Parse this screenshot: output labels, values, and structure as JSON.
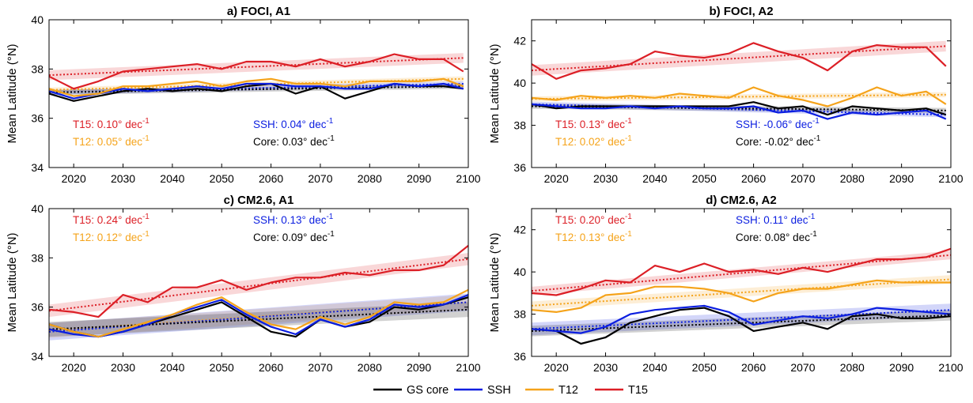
{
  "figure": {
    "legend": [
      {
        "name": "GS core",
        "color": "#000000"
      },
      {
        "name": "SSH",
        "color": "#0b1ee0"
      },
      {
        "name": "T12",
        "color": "#f5a31a"
      },
      {
        "name": "T15",
        "color": "#dc1f26"
      }
    ]
  },
  "chart_data": [
    {
      "type": "line",
      "title": "a) FOCI, A1",
      "xlabel": "",
      "ylabel": "Mean Latitude (°N)",
      "xlim": [
        2015,
        2100
      ],
      "ylim": [
        34,
        40
      ],
      "xticks": [
        2020,
        2030,
        2040,
        2050,
        2060,
        2070,
        2080,
        2090,
        2100
      ],
      "yticks": [
        34,
        36,
        38,
        40
      ],
      "grid": false,
      "annotations": [
        {
          "prefix": "T15:",
          "value": "0.10°",
          "unit": "dec",
          "exp": "-1",
          "color": "#dc1f26"
        },
        {
          "prefix": "T12:",
          "value": "0.05°",
          "unit": "dec",
          "exp": "-1",
          "color": "#f5a31a"
        },
        {
          "prefix": "SSH:",
          "value": "0.04°",
          "unit": "dec",
          "exp": "-1",
          "color": "#0b1ee0"
        },
        {
          "prefix": "Core:",
          "value": "0.03°",
          "unit": "dec",
          "exp": "-1",
          "color": "#000000"
        }
      ],
      "x": [
        2015,
        2020,
        2025,
        2030,
        2035,
        2040,
        2045,
        2050,
        2055,
        2060,
        2065,
        2070,
        2075,
        2080,
        2085,
        2090,
        2095,
        2099
      ],
      "series": [
        {
          "name": "T15",
          "color": "#dc1f26",
          "values": [
            37.7,
            37.2,
            37.5,
            37.9,
            38.0,
            38.1,
            38.2,
            38.0,
            38.3,
            38.3,
            38.1,
            38.4,
            38.1,
            38.3,
            38.6,
            38.4,
            38.4,
            37.9
          ],
          "trend": [
            37.75,
            38.45
          ],
          "band": 0.2
        },
        {
          "name": "T12",
          "color": "#f5a31a",
          "values": [
            37.2,
            36.9,
            37.0,
            37.3,
            37.3,
            37.4,
            37.5,
            37.3,
            37.5,
            37.6,
            37.4,
            37.4,
            37.3,
            37.5,
            37.5,
            37.5,
            37.6,
            37.3
          ],
          "trend": [
            37.15,
            37.6
          ],
          "band": 0.1
        },
        {
          "name": "SSH",
          "color": "#0b1ee0",
          "values": [
            37.1,
            36.8,
            37.0,
            37.2,
            37.1,
            37.2,
            37.3,
            37.2,
            37.4,
            37.4,
            37.3,
            37.3,
            37.2,
            37.2,
            37.4,
            37.3,
            37.4,
            37.2
          ],
          "trend": [
            37.05,
            37.4
          ],
          "band": 0.1
        },
        {
          "name": "GS core",
          "color": "#000000",
          "values": [
            37.0,
            36.7,
            36.9,
            37.1,
            37.2,
            37.1,
            37.2,
            37.1,
            37.3,
            37.4,
            37.0,
            37.3,
            36.8,
            37.1,
            37.4,
            37.3,
            37.3,
            37.2
          ],
          "trend": [
            37.05,
            37.3
          ],
          "band": 0.1
        }
      ]
    },
    {
      "type": "line",
      "title": "b) FOCI, A2",
      "xlabel": "",
      "ylabel": "Mean Latitude (°N)",
      "xlim": [
        2015,
        2100
      ],
      "ylim": [
        36,
        43
      ],
      "xticks": [
        2020,
        2030,
        2040,
        2050,
        2060,
        2070,
        2080,
        2090,
        2100
      ],
      "yticks": [
        36,
        38,
        40,
        42
      ],
      "grid": false,
      "annotations": [
        {
          "prefix": "T15:",
          "value": "0.13°",
          "unit": "dec",
          "exp": "-1",
          "color": "#dc1f26"
        },
        {
          "prefix": "T12:",
          "value": "0.02°",
          "unit": "dec",
          "exp": "-1",
          "color": "#f5a31a"
        },
        {
          "prefix": "SSH:",
          "value": "-0.06°",
          "unit": "dec",
          "exp": "-1",
          "color": "#0b1ee0"
        },
        {
          "prefix": "Core:",
          "value": "-0.02°",
          "unit": "dec",
          "exp": "-1",
          "color": "#000000"
        }
      ],
      "x": [
        2015,
        2020,
        2025,
        2030,
        2035,
        2040,
        2045,
        2050,
        2055,
        2060,
        2065,
        2070,
        2075,
        2080,
        2085,
        2090,
        2095,
        2099
      ],
      "series": [
        {
          "name": "T15",
          "color": "#dc1f26",
          "values": [
            40.9,
            40.2,
            40.6,
            40.7,
            40.9,
            41.5,
            41.3,
            41.2,
            41.4,
            41.9,
            41.5,
            41.2,
            40.6,
            41.5,
            41.8,
            41.7,
            41.7,
            40.8
          ],
          "trend": [
            40.6,
            41.75
          ],
          "band": 0.25
        },
        {
          "name": "T12",
          "color": "#f5a31a",
          "values": [
            39.3,
            39.2,
            39.4,
            39.3,
            39.4,
            39.3,
            39.5,
            39.4,
            39.3,
            39.8,
            39.4,
            39.2,
            38.9,
            39.3,
            39.8,
            39.4,
            39.6,
            39.0
          ],
          "trend": [
            39.25,
            39.45
          ],
          "band": 0.12
        },
        {
          "name": "SSH",
          "color": "#0b1ee0",
          "values": [
            39.0,
            38.9,
            38.8,
            38.8,
            38.9,
            38.8,
            38.9,
            38.8,
            38.8,
            38.9,
            38.6,
            38.7,
            38.3,
            38.6,
            38.5,
            38.6,
            38.7,
            38.3
          ],
          "trend": [
            39.0,
            38.5
          ],
          "band": 0.12
        },
        {
          "name": "GS core",
          "color": "#000000",
          "values": [
            39.0,
            38.8,
            38.9,
            38.9,
            38.9,
            38.9,
            38.9,
            38.9,
            38.9,
            39.1,
            38.8,
            38.9,
            38.5,
            38.9,
            38.8,
            38.7,
            38.8,
            38.5
          ],
          "trend": [
            38.9,
            38.7
          ],
          "band": 0.12
        }
      ]
    },
    {
      "type": "line",
      "title": "c) CM2.6, A1",
      "xlabel": "",
      "ylabel": "Mean Latitude (°N)",
      "xlim": [
        2015,
        2100
      ],
      "ylim": [
        34,
        40
      ],
      "xticks": [
        2020,
        2030,
        2040,
        2050,
        2060,
        2070,
        2080,
        2090,
        2100
      ],
      "yticks": [
        34,
        36,
        38,
        40
      ],
      "grid": false,
      "annotations": [
        {
          "prefix": "T15:",
          "value": "0.24°",
          "unit": "dec",
          "exp": "-1",
          "color": "#dc1f26"
        },
        {
          "prefix": "T12:",
          "value": "0.12°",
          "unit": "dec",
          "exp": "-1",
          "color": "#f5a31a"
        },
        {
          "prefix": "SSH:",
          "value": "0.13°",
          "unit": "dec",
          "exp": "-1",
          "color": "#0b1ee0"
        },
        {
          "prefix": "Core:",
          "value": "0.09°",
          "unit": "dec",
          "exp": "-1",
          "color": "#000000"
        }
      ],
      "x": [
        2015,
        2020,
        2025,
        2030,
        2035,
        2040,
        2045,
        2050,
        2055,
        2060,
        2065,
        2070,
        2075,
        2080,
        2085,
        2090,
        2095,
        2100
      ],
      "series": [
        {
          "name": "T15",
          "color": "#dc1f26",
          "values": [
            35.9,
            35.8,
            35.6,
            36.5,
            36.2,
            36.8,
            36.8,
            37.1,
            36.7,
            37.0,
            37.2,
            37.2,
            37.4,
            37.3,
            37.5,
            37.5,
            37.7,
            38.5
          ],
          "trend": [
            35.85,
            37.95
          ],
          "band": 0.25
        },
        {
          "name": "T12",
          "color": "#f5a31a",
          "values": [
            35.3,
            35.0,
            34.8,
            35.1,
            35.4,
            35.7,
            36.1,
            36.4,
            35.8,
            35.3,
            35.1,
            35.6,
            35.3,
            35.6,
            36.2,
            36.1,
            36.2,
            36.7
          ],
          "trend": [
            35.05,
            36.2
          ],
          "band": 0.3
        },
        {
          "name": "SSH",
          "color": "#0b1ee0",
          "values": [
            35.1,
            34.9,
            34.8,
            35.0,
            35.3,
            35.7,
            36.0,
            36.3,
            35.7,
            35.2,
            34.9,
            35.5,
            35.2,
            35.5,
            36.1,
            36.0,
            36.1,
            36.5
          ],
          "trend": [
            35.0,
            36.2
          ],
          "band": 0.35
        },
        {
          "name": "GS core",
          "color": "#000000",
          "values": [
            35.3,
            35.0,
            34.8,
            35.0,
            35.3,
            35.6,
            35.9,
            36.2,
            35.6,
            35.0,
            34.8,
            35.5,
            35.2,
            35.4,
            36.0,
            35.9,
            36.1,
            36.4
          ],
          "trend": [
            35.1,
            35.9
          ],
          "band": 0.3
        }
      ]
    },
    {
      "type": "line",
      "title": "d) CM2.6, A2",
      "xlabel": "",
      "ylabel": "Mean Latitude (°N)",
      "xlim": [
        2015,
        2100
      ],
      "ylim": [
        36,
        43
      ],
      "xticks": [
        2020,
        2030,
        2040,
        2050,
        2060,
        2070,
        2080,
        2090,
        2100
      ],
      "yticks": [
        36,
        38,
        40,
        42
      ],
      "grid": false,
      "annotations": [
        {
          "prefix": "T15:",
          "value": "0.20°",
          "unit": "dec",
          "exp": "-1",
          "color": "#dc1f26"
        },
        {
          "prefix": "T12:",
          "value": "0.13°",
          "unit": "dec",
          "exp": "-1",
          "color": "#f5a31a"
        },
        {
          "prefix": "SSH:",
          "value": "0.11°",
          "unit": "dec",
          "exp": "-1",
          "color": "#0b1ee0"
        },
        {
          "prefix": "Core:",
          "value": "0.08°",
          "unit": "dec",
          "exp": "-1",
          "color": "#000000"
        }
      ],
      "x": [
        2015,
        2020,
        2025,
        2030,
        2035,
        2040,
        2045,
        2050,
        2055,
        2060,
        2065,
        2070,
        2075,
        2080,
        2085,
        2090,
        2095,
        2100
      ],
      "series": [
        {
          "name": "T15",
          "color": "#dc1f26",
          "values": [
            39.0,
            38.9,
            39.2,
            39.6,
            39.5,
            40.3,
            40.0,
            40.4,
            40.0,
            40.1,
            39.9,
            40.2,
            40.0,
            40.3,
            40.6,
            40.6,
            40.7,
            41.1
          ],
          "trend": [
            39.1,
            40.8
          ],
          "band": 0.2
        },
        {
          "name": "T12",
          "color": "#f5a31a",
          "values": [
            38.2,
            38.1,
            38.3,
            38.9,
            39.0,
            39.3,
            39.3,
            39.2,
            39.0,
            38.6,
            39.0,
            39.2,
            39.2,
            39.4,
            39.6,
            39.5,
            39.5,
            39.5
          ],
          "trend": [
            38.4,
            39.65
          ],
          "band": 0.2
        },
        {
          "name": "SSH",
          "color": "#0b1ee0",
          "values": [
            37.3,
            37.2,
            37.1,
            37.4,
            38.0,
            38.2,
            38.3,
            38.4,
            38.1,
            37.5,
            37.7,
            37.9,
            37.8,
            38.0,
            38.3,
            38.2,
            38.1,
            38.0
          ],
          "trend": [
            37.3,
            38.2
          ],
          "band": 0.3
        },
        {
          "name": "GS core",
          "color": "#000000",
          "values": [
            37.3,
            37.2,
            36.6,
            36.9,
            37.6,
            37.9,
            38.2,
            38.3,
            37.9,
            37.2,
            37.4,
            37.6,
            37.3,
            37.9,
            38.0,
            37.8,
            37.8,
            37.9
          ],
          "trend": [
            37.2,
            37.95
          ],
          "band": 0.25
        }
      ]
    }
  ]
}
